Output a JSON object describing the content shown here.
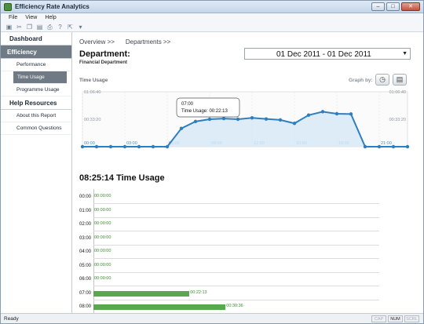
{
  "window": {
    "title": "Efficiency Rate Analytics",
    "btn_min": "–",
    "btn_max": "□",
    "btn_close": "✕"
  },
  "menu": {
    "file": "File",
    "view": "View",
    "help": "Help"
  },
  "sidebar": {
    "dashboard": "Dashboard",
    "efficiency": "Efficiency",
    "items": [
      "Performance",
      "Time Usage",
      "Programme Usage"
    ],
    "help_resources": "Help Resources",
    "help_items": [
      "About this Report",
      "Common Questions"
    ]
  },
  "breadcrumb": {
    "overview": "Overview >>",
    "departments": "Departments >>"
  },
  "department": {
    "title": "Department:",
    "name": "Financial Department"
  },
  "date_range": "01 Dec 2011 - 01 Dec 2011",
  "chart_header": {
    "label": "Time Usage",
    "graph_by": "Graph by:"
  },
  "tooltip": {
    "time": "07:00",
    "text": "Time Usage: 00:22:13"
  },
  "usage_total": "08:25:14 Time Usage",
  "status": {
    "ready": "Ready",
    "cap": "CAP",
    "num": "NUM",
    "scrl": "SCRL"
  },
  "chart_data": [
    {
      "type": "area",
      "title": "Time Usage",
      "x_ticks": [
        "00:00",
        "03:00",
        "06:00",
        "09:00",
        "12:00",
        "15:00",
        "18:00",
        "21:00"
      ],
      "y_ticks_left": [
        "01:06:40",
        "00:33:20"
      ],
      "y_ticks_right": [
        "01:06:40",
        "00:33:20"
      ],
      "ylim": [
        0,
        4000
      ],
      "x": [
        0,
        1,
        2,
        3,
        4,
        5,
        6,
        7,
        8,
        9,
        10,
        11,
        12,
        13,
        14,
        15,
        16,
        17,
        18,
        19,
        20,
        21,
        22,
        23
      ],
      "y": [
        0,
        0,
        0,
        0,
        0,
        0,
        0,
        1333,
        1836,
        2000,
        2050,
        2000,
        2100,
        2020,
        1950,
        1700,
        2300,
        2550,
        2400,
        2380,
        0,
        0,
        0,
        0
      ]
    },
    {
      "type": "bar",
      "orientation": "horizontal",
      "categories": [
        "00:00",
        "01:00",
        "02:00",
        "03:00",
        "04:00",
        "05:00",
        "06:00",
        "07:00",
        "08:00"
      ],
      "value_labels": [
        "00:00:00",
        "00:00:00",
        "00:00:00",
        "00:00:00",
        "00:00:00",
        "00:00:00",
        "00:00:00",
        "00:22:13",
        "00:30:36"
      ],
      "values": [
        0,
        0,
        0,
        0,
        0,
        0,
        0,
        1333,
        1836
      ],
      "xlim": [
        0,
        3600
      ]
    }
  ]
}
